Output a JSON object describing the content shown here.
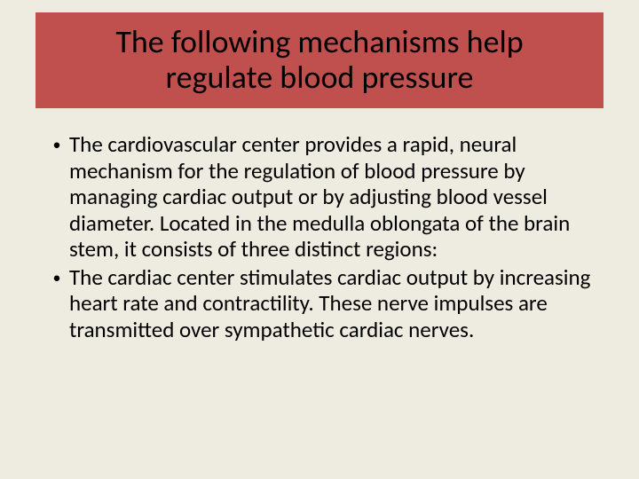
{
  "slide": {
    "background_color": "#eeece1",
    "title_box_color": "#c0504d",
    "title": "The following mechanisms help regulate blood pressure",
    "title_fontsize": 36,
    "title_color": "#000000",
    "body_fontsize": 25,
    "body_color": "#000000",
    "bullet_marker": "•",
    "bullets": [
      "The cardiovascular center provides a rapid, neural mechanism for the regulation of blood pressure by managing cardiac output or by adjusting blood vessel diameter. Located in the medulla oblongata of the brain stem, it consists of three distinct regions:",
      "The cardiac center stimulates cardiac output by increasing heart rate and contractility. These nerve impulses are transmitted over sympathetic cardiac nerves."
    ]
  }
}
